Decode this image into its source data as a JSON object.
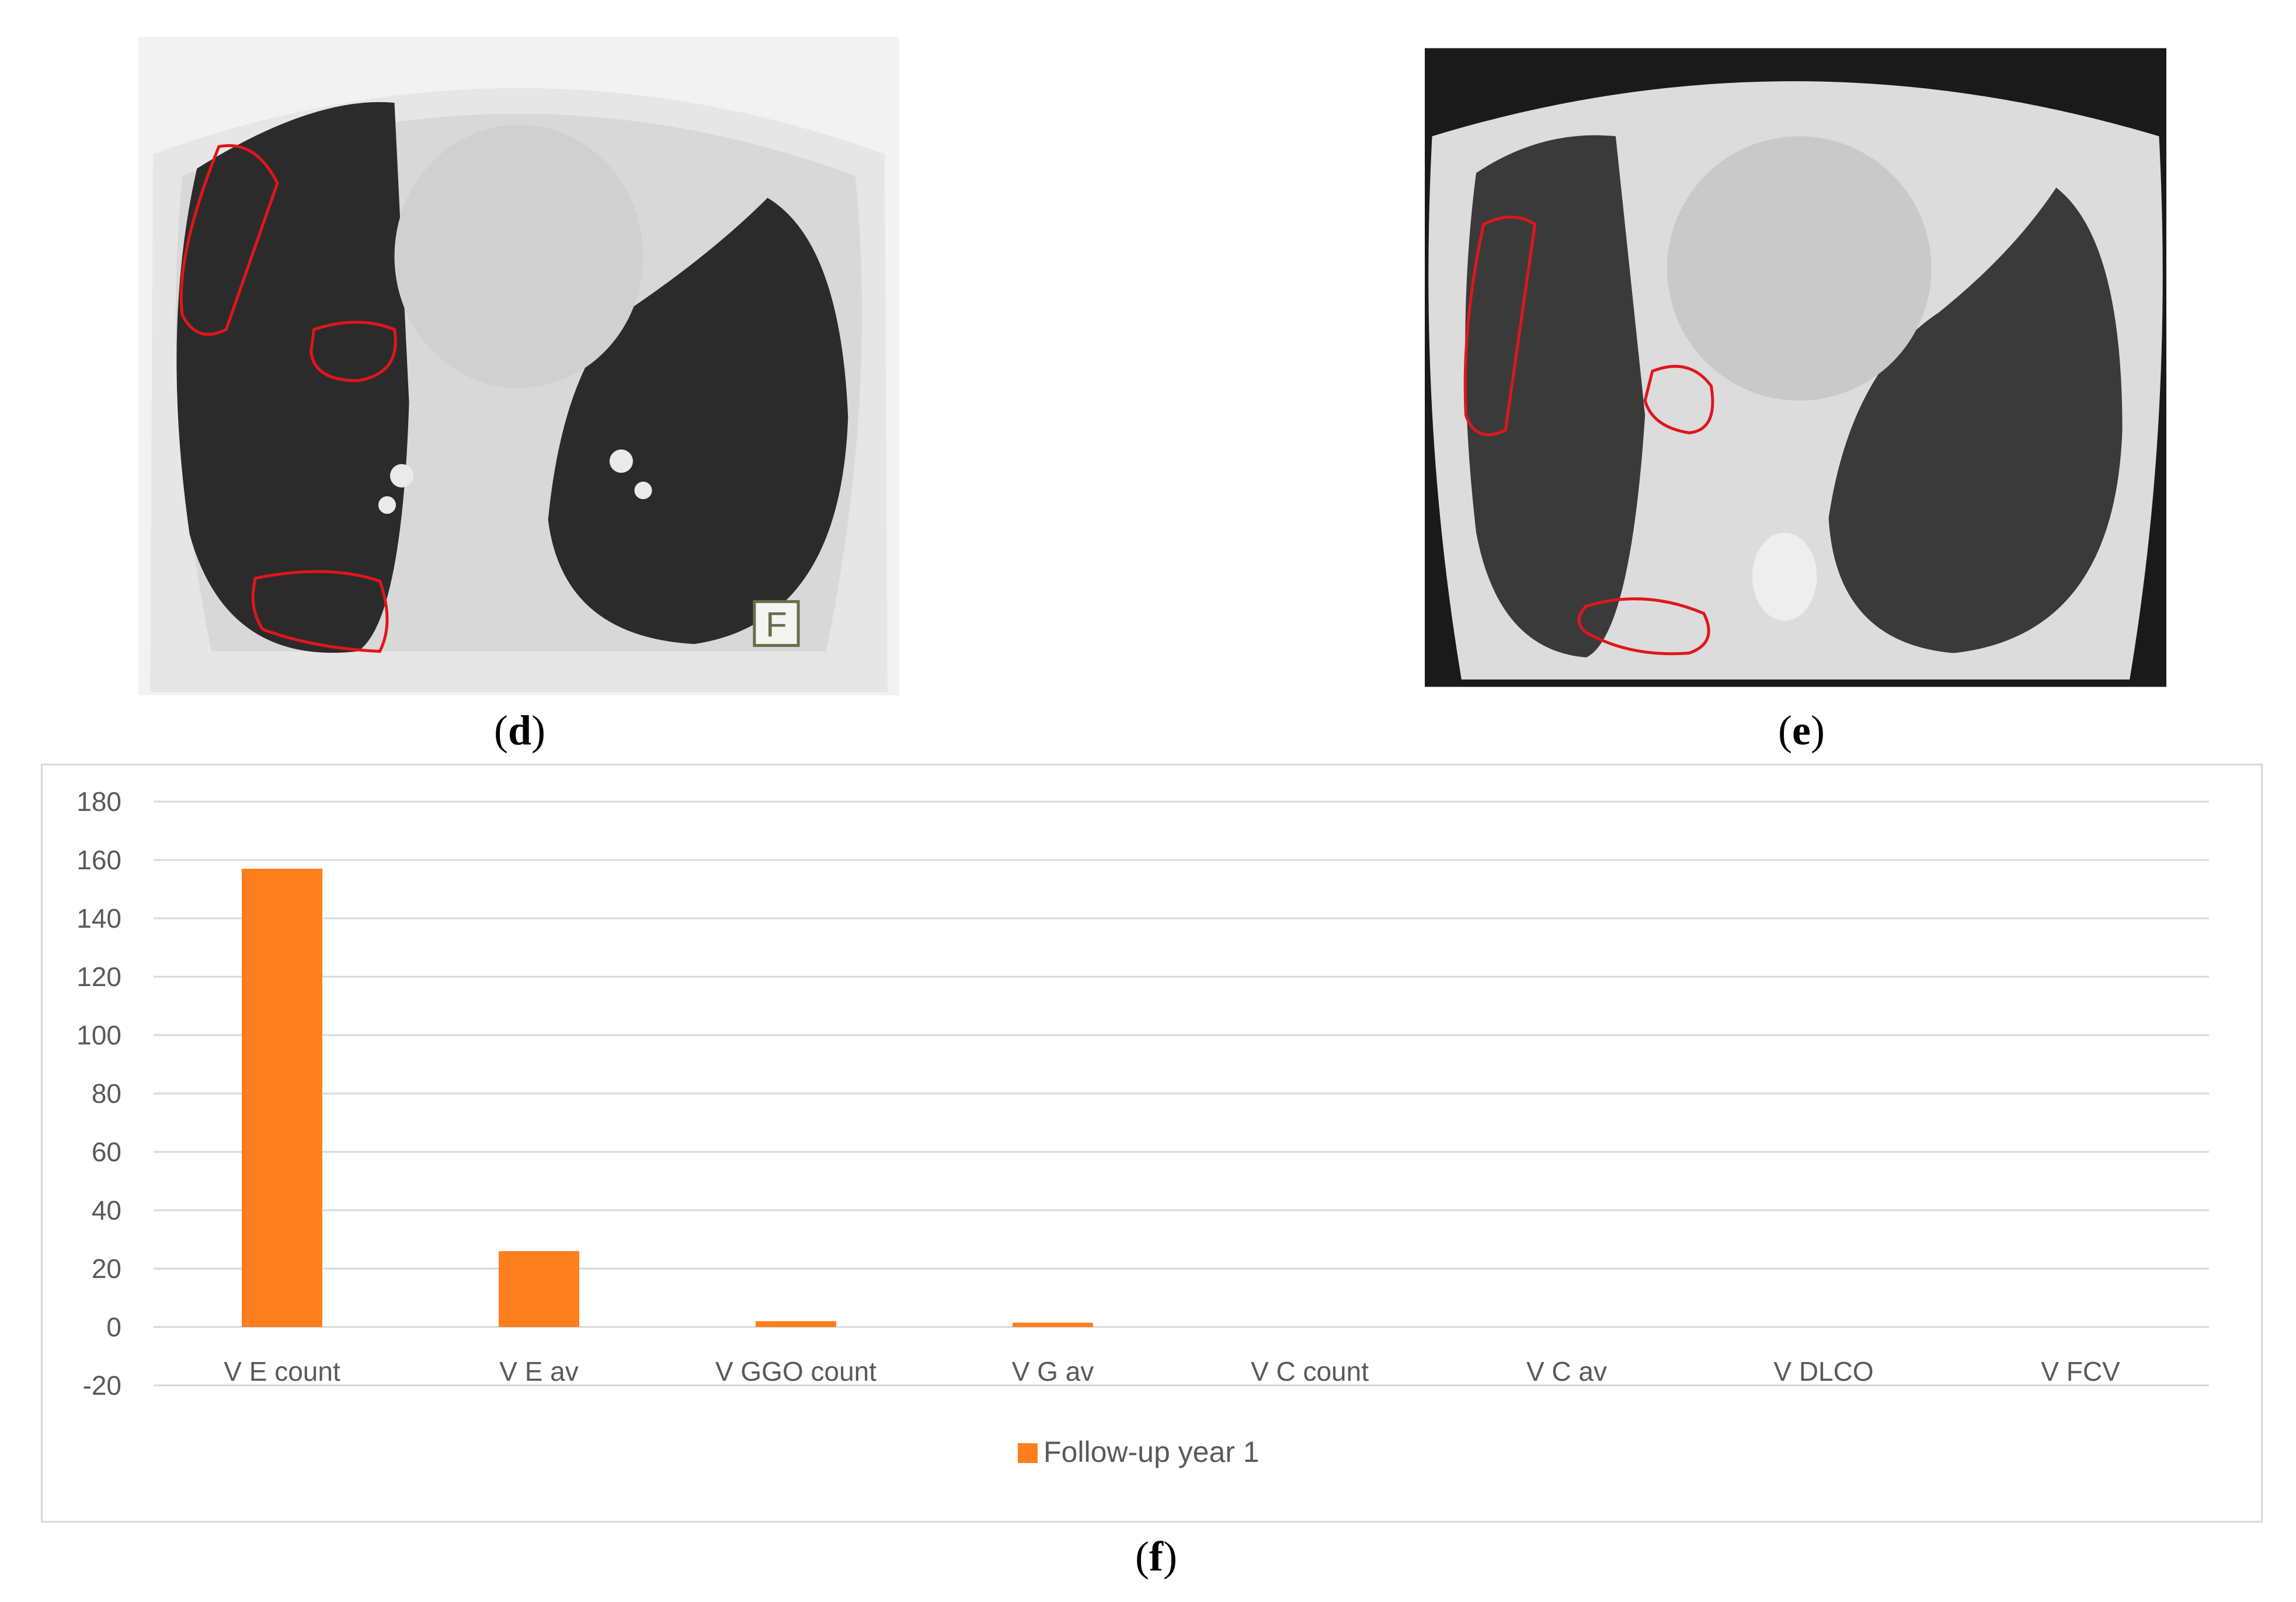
{
  "panels": {
    "d": {
      "label_open": "(",
      "label_letter": "d",
      "label_close": ")",
      "marker_text": "F"
    },
    "e": {
      "label_open": "(",
      "label_letter": "e",
      "label_close": ")"
    },
    "f": {
      "label_open": "(",
      "label_letter": "f",
      "label_close": ")"
    }
  },
  "colors": {
    "bar": "#FF7F1F",
    "roi": "#E0161B",
    "grid": "#d9d9d9",
    "axis_text": "#595959"
  },
  "chart_data": {
    "type": "bar",
    "title": "",
    "xlabel": "",
    "ylabel": "",
    "categories": [
      "V E count",
      "V E av",
      "V GGO count",
      "V G av",
      "V C count",
      "V C av",
      "V DLCO",
      "V FCV"
    ],
    "series": [
      {
        "name": "Follow-up year 1",
        "values": [
          157,
          26,
          2,
          1.5,
          0,
          0,
          0,
          0
        ]
      }
    ],
    "ylim": [
      -20,
      180
    ],
    "yticks": [
      "180",
      "160",
      "140",
      "120",
      "100",
      "80",
      "60",
      "40",
      "20",
      "0",
      "-20"
    ],
    "grid": true,
    "legend_position": "bottom"
  }
}
